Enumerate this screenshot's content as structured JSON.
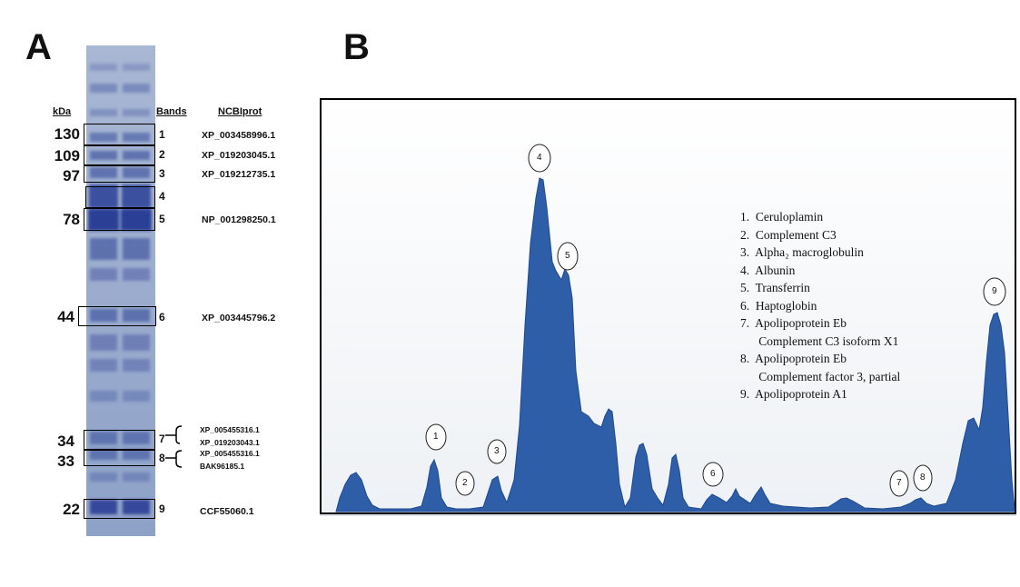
{
  "panel_a": {
    "letter": "A",
    "headers": {
      "kda": "kDa",
      "bands": "Bands",
      "ncbi": "NCBIprot"
    },
    "rows": [
      {
        "kda": "130",
        "band": "1",
        "accession": "XP_003458996.1"
      },
      {
        "kda": "109",
        "band": "2",
        "accession": "XP_019203045.1"
      },
      {
        "kda": "97",
        "band": "3",
        "accession": "XP_019212735.1"
      },
      {
        "kda": "",
        "band": "4",
        "accession": ""
      },
      {
        "kda": "78",
        "band": "5",
        "accession": "NP_001298250.1"
      },
      {
        "kda": "44",
        "band": "6",
        "accession": "XP_003445796.2"
      },
      {
        "kda": "34",
        "band": "7",
        "accession": "XP_005455316.1",
        "accession2": "XP_019203043.1"
      },
      {
        "kda": "33",
        "band": "8",
        "accession": "XP_005455316.1",
        "accession2": "BAK96185.1"
      },
      {
        "kda": "22",
        "band": "9",
        "accession": "CCF55060.1"
      }
    ]
  },
  "panel_b": {
    "letter": "B",
    "peak_labels": [
      "1",
      "2",
      "3",
      "4",
      "5",
      "6",
      "7",
      "8",
      "9"
    ],
    "legend": [
      "1.  Ceruloplamin",
      "2.  Complement C3",
      "3.  Alpha₂ macroglobulin",
      "4.  Albunin",
      "5.  Transferrin",
      "6.  Haptoglobin",
      "7.  Apolipoprotein Eb",
      "      Complement C3 isoform X1",
      "8.  Apolipoprotein Eb",
      "      Complement factor 3, partial",
      "9.  Apolipoprotein A1"
    ],
    "colors": {
      "fill": "#2f5ea8",
      "fill_dark": "#1f4a91",
      "frame": "#000000"
    }
  }
}
